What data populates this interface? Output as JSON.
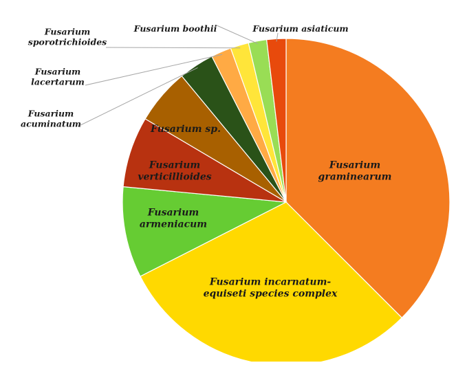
{
  "chart_data": {
    "type": "pie",
    "title": "",
    "slices": [
      {
        "label": "Fusarium graminearum",
        "value": 37.5,
        "color": "#f47c20"
      },
      {
        "label": "Fusarium incarnatum-equiseti species complex",
        "value": 30.0,
        "color": "#ffd900"
      },
      {
        "label": "Fusarium armeniacum",
        "value": 9.0,
        "color": "#66cc33"
      },
      {
        "label": "Fusarium verticillioides",
        "value": 7.0,
        "color": "#b83210"
      },
      {
        "label": "Fusarium sp.",
        "value": 5.5,
        "color": "#a86000"
      },
      {
        "label": "Fusarium acuminatum",
        "value": 3.5,
        "color": "#2a5218"
      },
      {
        "label": "Fusarium lacertarum",
        "value": 2.0,
        "color": "#ffaa44"
      },
      {
        "label": "Fusarium sporotrichioides",
        "value": 1.8,
        "color": "#ffe53a"
      },
      {
        "label": "Fusarium boothii",
        "value": 1.8,
        "color": "#99dd55"
      },
      {
        "label": "Fusarium asiaticum",
        "value": 1.9,
        "color": "#e84a0c"
      }
    ],
    "labels_display": {
      "Fusarium graminearum": [
        "Fusarium",
        "graminearum"
      ],
      "Fusarium incarnatum-equiseti species complex": [
        "Fusarium incarnatum-",
        "equiseti species complex"
      ],
      "Fusarium armeniacum": [
        "Fusarium",
        "armeniacum"
      ],
      "Fusarium verticillioides": [
        "Fusarium",
        "verticillioides"
      ],
      "Fusarium sp.": [
        "Fusarium sp."
      ],
      "Fusarium acuminatum": [
        "Fusarium",
        "acuminatum"
      ],
      "Fusarium lacertarum": [
        "Fusarium",
        "lacertarum"
      ],
      "Fusarium sporotrichioides": [
        "Fusarium",
        "sporotrichioides"
      ],
      "Fusarium boothii": [
        "Fusarium boothii"
      ],
      "Fusarium asiaticum": [
        "Fusarium asiaticum"
      ]
    },
    "legend": "none",
    "start": "top",
    "direction": "clockwise"
  }
}
